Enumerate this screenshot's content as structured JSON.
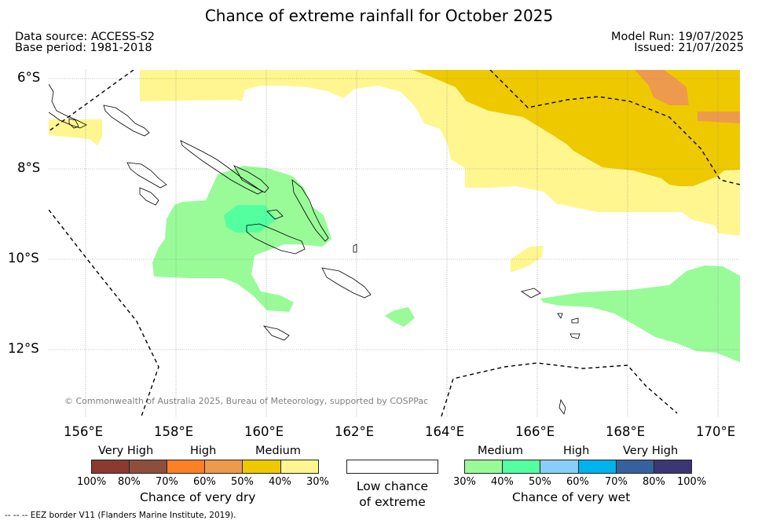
{
  "header": {
    "title": "Chance of extreme rainfall for October 2025",
    "data_source": "Data source: ACCESS-S2",
    "base_period": "Base period: 1981-2018",
    "model_run": "Model Run: 19/07/2025",
    "issued": "Issued: 21/07/2025"
  },
  "map": {
    "lat_labels": [
      "6°S",
      "8°S",
      "10°S",
      "12°S"
    ],
    "lon_labels": [
      "156°E",
      "158°E",
      "160°E",
      "162°E",
      "164°E",
      "166°E",
      "168°E",
      "170°E"
    ],
    "copyright": "© Commonwealth of Australia 2025, Bureau of Meteorology, supported by COSPPac",
    "extent": {
      "lon": [
        155.2,
        170.5
      ],
      "lat": [
        -5.8,
        -13.5
      ]
    }
  },
  "legend": {
    "dry": {
      "title": "Chance of very dry",
      "categories": [
        "Very High",
        "High",
        "Medium"
      ],
      "ticks": [
        "100%",
        "80%",
        "70%",
        "60%",
        "50%",
        "40%",
        "30%"
      ],
      "colors": [
        "#8b3a30",
        "#8f4e3c",
        "#ff7f24",
        "#ee9a4c",
        "#eec900",
        "#fff68f"
      ]
    },
    "neutral": {
      "line1": "Low chance",
      "line2": "of extreme",
      "color": "#ffffff"
    },
    "wet": {
      "title": "Chance of very wet",
      "categories": [
        "Medium",
        "High",
        "Very High"
      ],
      "ticks": [
        "30%",
        "40%",
        "50%",
        "60%",
        "70%",
        "80%",
        "100%"
      ],
      "colors": [
        "#98fb98",
        "#54ff9f",
        "#87cefa",
        "#00b2ee",
        "#36619c",
        "#3c3674"
      ]
    }
  },
  "footnote": "-- -- -- EEZ border V11 (Flanders Marine Institute, 2019)."
}
